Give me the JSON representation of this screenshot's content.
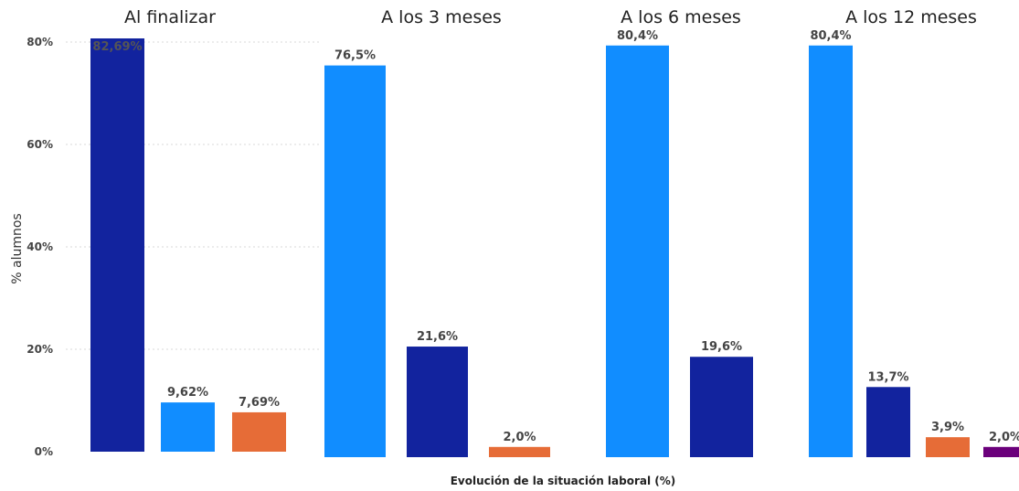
{
  "chart_data": {
    "type": "bar",
    "xlabel": "Evolución de la situación laboral (%)",
    "ylabel": "% alumnos",
    "ylim": [
      0,
      80
    ],
    "y_ticks": [
      "0%",
      "20%",
      "40%",
      "60%",
      "80%"
    ],
    "grid": true,
    "colors": {
      "light_blue": "#118dff",
      "dark_blue": "#12239e",
      "orange": "#e66c37",
      "purple": "#6b007b"
    },
    "panels": [
      {
        "title": "Al finalizar",
        "bars": [
          {
            "value": 82.69,
            "label": "82,69%",
            "color": "dark_blue"
          },
          {
            "value": 9.62,
            "label": "9,62%",
            "color": "light_blue"
          },
          {
            "value": 7.69,
            "label": "7,69%",
            "color": "orange"
          }
        ]
      },
      {
        "title": "A los 3 meses",
        "bars": [
          {
            "value": 76.5,
            "label": "76,5%",
            "color": "light_blue"
          },
          {
            "value": 21.6,
            "label": "21,6%",
            "color": "dark_blue"
          },
          {
            "value": 2.0,
            "label": "2,0%",
            "color": "orange"
          }
        ]
      },
      {
        "title": "A los 6 meses",
        "bars": [
          {
            "value": 80.4,
            "label": "80,4%",
            "color": "light_blue"
          },
          {
            "value": 19.6,
            "label": "19,6%",
            "color": "dark_blue"
          }
        ]
      },
      {
        "title": "A los 12 meses",
        "bars": [
          {
            "value": 80.4,
            "label": "80,4%",
            "color": "light_blue"
          },
          {
            "value": 13.7,
            "label": "13,7%",
            "color": "dark_blue"
          },
          {
            "value": 3.9,
            "label": "3,9%",
            "color": "orange"
          },
          {
            "value": 2.0,
            "label": "2,0%",
            "color": "purple"
          }
        ]
      }
    ]
  }
}
